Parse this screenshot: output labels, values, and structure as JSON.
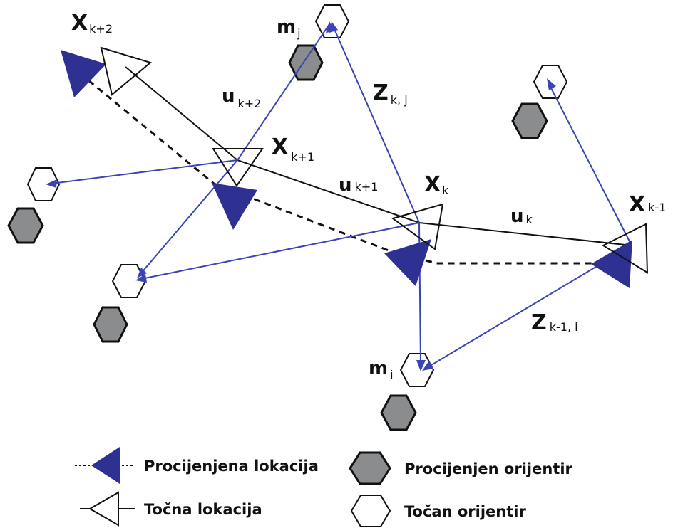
{
  "colors": {
    "estimated": "#2e3192",
    "estimated_landmark": "#8a8c8e",
    "true_outline": "#111111",
    "measurement": "#3a43b8"
  },
  "labels": {
    "x_k2": {
      "main": "X",
      "sub": "k+2"
    },
    "x_k1": {
      "main": "X",
      "sub": "k+1"
    },
    "x_k": {
      "main": "X",
      "sub": "k"
    },
    "x_km1": {
      "main": "X",
      "sub": "k-1"
    },
    "u_k2": {
      "main": "u",
      "sub": "k+2"
    },
    "u_k1": {
      "main": "u",
      "sub": "k+1"
    },
    "u_k": {
      "main": "u",
      "sub": "k"
    },
    "z_kj": {
      "main": "Z",
      "sub": "k, j"
    },
    "z_km1i": {
      "main": "Z",
      "sub": "k-1, i"
    },
    "m_j": {
      "main": "m",
      "sub": "j"
    },
    "m_i": {
      "main": "m",
      "sub": "i"
    }
  },
  "legend": {
    "estimated_location": "Procijenjena lokacija",
    "true_location": "Točna lokacija",
    "estimated_landmark": "Procijenjen orijentir",
    "true_landmark": "Točan orijentir"
  }
}
